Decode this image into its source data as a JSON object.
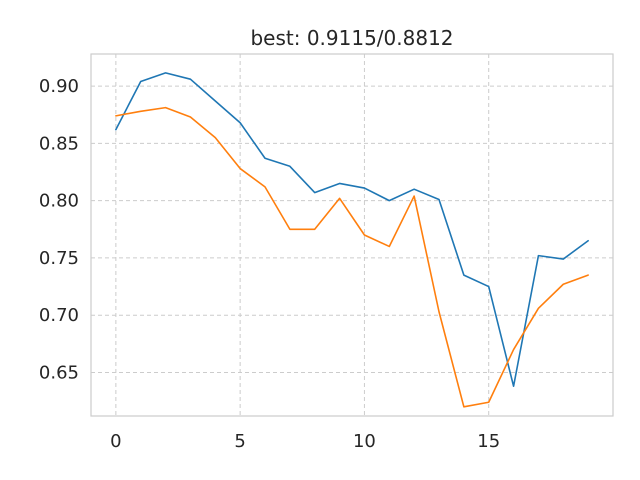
{
  "chart_data": {
    "type": "line",
    "title": "best: 0.9115/0.8812",
    "xlabel": "",
    "ylabel": "",
    "x": [
      0,
      1,
      2,
      3,
      4,
      5,
      6,
      7,
      8,
      9,
      10,
      11,
      12,
      13,
      14,
      15,
      16,
      17,
      18,
      19
    ],
    "xlim": [
      -1,
      20
    ],
    "ylim": [
      0.612,
      0.928
    ],
    "xticks": [
      0,
      5,
      10,
      15
    ],
    "xtick_labels": [
      "0",
      "5",
      "10",
      "15"
    ],
    "yticks": [
      0.65,
      0.7,
      0.75,
      0.8,
      0.85,
      0.9
    ],
    "ytick_labels": [
      "0.65",
      "0.70",
      "0.75",
      "0.80",
      "0.85",
      "0.90"
    ],
    "grid": true,
    "series": [
      {
        "color": "#1f77b4",
        "values": [
          0.862,
          0.904,
          0.9115,
          0.906,
          0.887,
          0.868,
          0.837,
          0.83,
          0.807,
          0.815,
          0.811,
          0.8,
          0.81,
          0.801,
          0.735,
          0.725,
          0.638,
          0.752,
          0.749,
          0.765
        ]
      },
      {
        "color": "#ff7f0e",
        "values": [
          0.874,
          0.878,
          0.8812,
          0.873,
          0.855,
          0.828,
          0.812,
          0.775,
          0.775,
          0.802,
          0.77,
          0.76,
          0.804,
          0.703,
          0.62,
          0.624,
          0.67,
          0.706,
          0.727,
          0.735
        ]
      }
    ]
  }
}
